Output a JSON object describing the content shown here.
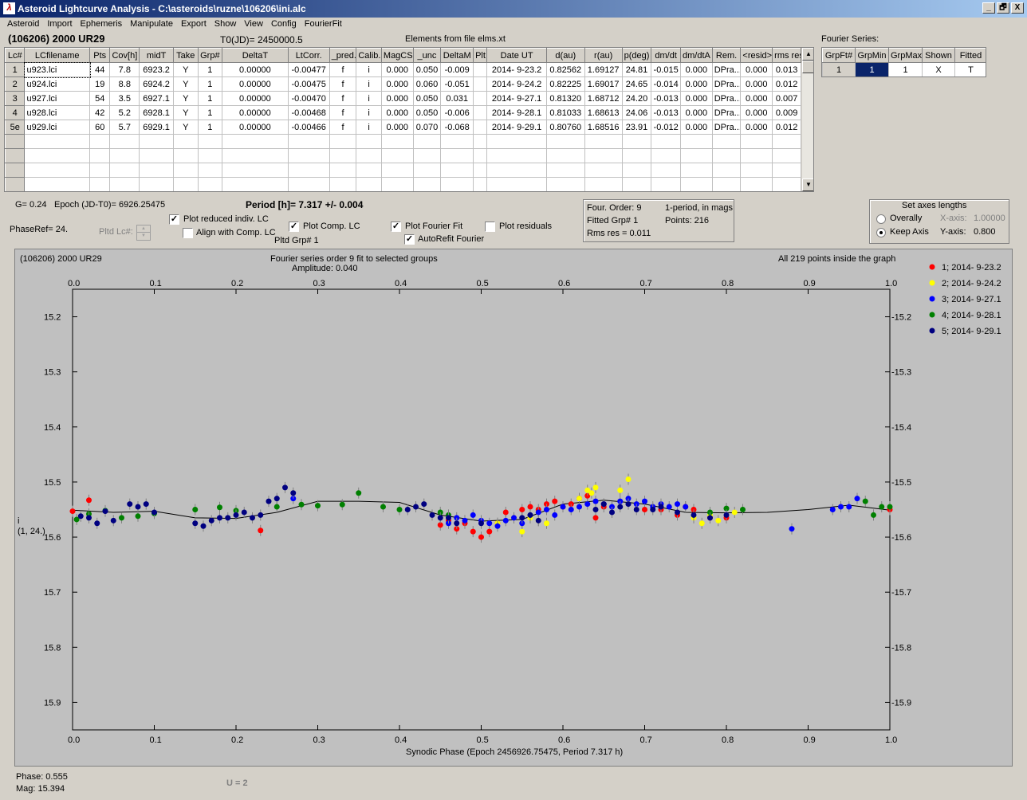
{
  "window": {
    "title": "Asteroid Lightcurve Analysis - C:\\asteroids\\ruzne\\106206\\ini.alc",
    "app_icon": "lightcurve-app-icon",
    "controls": [
      "_",
      "🗗",
      "X"
    ]
  },
  "menu": [
    "Asteroid",
    "Import",
    "Ephemeris",
    "Manipulate",
    "Export",
    "Show",
    "View",
    "Config",
    "FourierFit"
  ],
  "header": {
    "asteroid_name": "(106206) 2000 UR29",
    "t0": "T0(JD)= 2450000.5",
    "elements_note": "Elements from file elms.xt",
    "fourier_series_label": "Fourier Series:"
  },
  "lc_table": {
    "columns": [
      "Lc#",
      "LCfilename",
      "Pts",
      "Cov[h]",
      "midT",
      "Take",
      "Grp#",
      "DeltaT",
      "LtCorr.",
      "_pred.",
      "Calib.",
      "MagCS",
      "_unc",
      "DeltaM",
      "Plt",
      "Date UT",
      "d(au)",
      "r(au)",
      "p(deg)",
      "dm/dt",
      "dm/dtA",
      "Rem.",
      "<resid>",
      "rms res"
    ],
    "rows": [
      [
        "1",
        "u923.lci",
        "44",
        "7.8",
        "6923.2",
        "Y",
        "1",
        "0.00000",
        "-0.00477",
        "f",
        "i",
        "0.000",
        "0.050",
        "-0.009",
        "",
        "2014- 9-23.2",
        "0.82562",
        "1.69127",
        "24.81",
        "-0.015",
        "0.000",
        "DPra...",
        "0.000",
        "0.013"
      ],
      [
        "2",
        "u924.lci",
        "19",
        "8.8",
        "6924.2",
        "Y",
        "1",
        "0.00000",
        "-0.00475",
        "f",
        "i",
        "0.000",
        "0.060",
        "-0.051",
        "",
        "2014- 9-24.2",
        "0.82225",
        "1.69017",
        "24.65",
        "-0.014",
        "0.000",
        "DPra...",
        "0.000",
        "0.012"
      ],
      [
        "3",
        "u927.lci",
        "54",
        "3.5",
        "6927.1",
        "Y",
        "1",
        "0.00000",
        "-0.00470",
        "f",
        "i",
        "0.000",
        "0.050",
        "0.031",
        "",
        "2014- 9-27.1",
        "0.81320",
        "1.68712",
        "24.20",
        "-0.013",
        "0.000",
        "DPra...",
        "0.000",
        "0.007"
      ],
      [
        "4",
        "u928.lci",
        "42",
        "5.2",
        "6928.1",
        "Y",
        "1",
        "0.00000",
        "-0.00468",
        "f",
        "i",
        "0.000",
        "0.050",
        "-0.006",
        "",
        "2014- 9-28.1",
        "0.81033",
        "1.68613",
        "24.06",
        "-0.013",
        "0.000",
        "DPra...",
        "0.000",
        "0.009"
      ],
      [
        "5e",
        "u929.lci",
        "60",
        "5.7",
        "6929.1",
        "Y",
        "1",
        "0.00000",
        "-0.00466",
        "f",
        "i",
        "0.000",
        "0.070",
        "-0.068",
        "",
        "2014- 9-29.1",
        "0.80760",
        "1.68516",
        "23.91",
        "-0.012",
        "0.000",
        "DPra...",
        "0.000",
        "0.012"
      ]
    ],
    "empty_rows": 4
  },
  "fourier_table": {
    "columns": [
      "GrpFt#",
      "GrpMin",
      "GrpMax",
      "Shown",
      "Fitted"
    ],
    "row": [
      "1",
      "1",
      "1",
      "X",
      "T"
    ]
  },
  "info": {
    "g": "G= 0.24",
    "epoch": "Epoch (JD-T0)= 6926.25475",
    "period": "Period [h]= 7.317 +/- 0.004",
    "phaseref": "PhaseRef= 24.",
    "pltd_lc": "Pltd Lc#:",
    "pltd_grp": "Pltd Grp#  1",
    "four_order": "Four. Order:  9",
    "one_period": "1-period, in mags",
    "fitted_grp": "Fitted Grp# 1",
    "points": "Points: 216",
    "rms_res": "Rms res     = 0.011"
  },
  "checkboxes": [
    {
      "label": "Plot reduced indiv. LC",
      "checked": true
    },
    {
      "label": "Align with Comp. LC",
      "checked": false
    },
    {
      "label": "Plot Comp. LC",
      "checked": true
    },
    {
      "label": "Plot Fourier Fit",
      "checked": true
    },
    {
      "label": "AutoRefit Fourier",
      "checked": true
    },
    {
      "label": "Plot residuals",
      "checked": false
    }
  ],
  "axes_box": {
    "title": "Set axes lengths",
    "overally": "Overally",
    "keep_axis": "Keep Axis",
    "x_axis_label": "X-axis:",
    "x_axis_value": "1.00000",
    "y_axis_label": "Y-axis:",
    "y_axis_value": "0.800",
    "selected": "Keep Axis"
  },
  "plot": {
    "name_label": "(106206) 2000 UR29",
    "fit_title": "Fourier series order 9 fit to selected groups",
    "amplitude": "Amplitude: 0.040",
    "points_note": "All 219 points inside the graph",
    "ylabel_mag": "i",
    "ylabel_sub": "(1, 24.)",
    "xlabel": "Synodic Phase (Epoch 2456926.75475, Period 7.317 h)",
    "phase_readout": "Phase:  0.555",
    "mag_readout": "Mag:   15.394",
    "u_label": "U = 2"
  },
  "chart_data": {
    "type": "scatter",
    "xlim": [
      0.0,
      1.0
    ],
    "ylim": [
      15.95,
      15.15
    ],
    "xticks": [
      0.0,
      0.1,
      0.2,
      0.3,
      0.4,
      0.5,
      0.6,
      0.7,
      0.8,
      0.9,
      1.0
    ],
    "yticks": [
      15.2,
      15.3,
      15.4,
      15.5,
      15.6,
      15.7,
      15.8,
      15.9
    ],
    "legend_position": "top-right (outside plot)",
    "grid": false,
    "fit_curve": {
      "color": "#000000",
      "x": [
        0.0,
        0.05,
        0.1,
        0.15,
        0.2,
        0.25,
        0.3,
        0.35,
        0.4,
        0.45,
        0.5,
        0.55,
        0.6,
        0.65,
        0.7,
        0.75,
        0.8,
        0.85,
        0.9,
        0.95,
        1.0
      ],
      "y": [
        15.551,
        15.555,
        15.553,
        15.565,
        15.566,
        15.555,
        15.535,
        15.535,
        15.537,
        15.56,
        15.571,
        15.568,
        15.54,
        15.533,
        15.54,
        15.555,
        15.556,
        15.555,
        15.55,
        15.542,
        15.551
      ]
    },
    "series": [
      {
        "name": "1; 2014- 9-23.2",
        "color": "#ff0000",
        "x": [
          0.0,
          0.02,
          0.23,
          0.45,
          0.46,
          0.47,
          0.48,
          0.49,
          0.5,
          0.51,
          0.52,
          0.53,
          0.55,
          0.56,
          0.57,
          0.58,
          0.59,
          0.6,
          0.61,
          0.62,
          0.63,
          0.64,
          0.65,
          0.7,
          0.72,
          0.74,
          0.75,
          0.76,
          0.78,
          0.8,
          1.0
        ],
        "y": [
          15.553,
          15.533,
          15.588,
          15.578,
          15.57,
          15.585,
          15.575,
          15.59,
          15.6,
          15.59,
          15.575,
          15.555,
          15.55,
          15.545,
          15.55,
          15.54,
          15.535,
          15.545,
          15.54,
          15.53,
          15.525,
          15.565,
          15.545,
          15.55,
          15.55,
          15.56,
          15.545,
          15.55,
          15.565,
          15.565,
          15.55
        ]
      },
      {
        "name": "2; 2014- 9-24.2",
        "color": "#ffff00",
        "x": [
          0.52,
          0.54,
          0.55,
          0.56,
          0.57,
          0.58,
          0.62,
          0.63,
          0.635,
          0.64,
          0.67,
          0.68,
          0.76,
          0.77,
          0.78,
          0.79,
          0.81
        ],
        "y": [
          15.575,
          15.565,
          15.59,
          15.565,
          15.57,
          15.575,
          15.53,
          15.515,
          15.52,
          15.51,
          15.515,
          15.495,
          15.565,
          15.575,
          15.56,
          15.57,
          15.555
        ]
      },
      {
        "name": "3; 2014- 9-27.1",
        "color": "#0000ff",
        "x": [
          0.27,
          0.46,
          0.47,
          0.48,
          0.49,
          0.5,
          0.51,
          0.52,
          0.53,
          0.54,
          0.55,
          0.56,
          0.57,
          0.58,
          0.59,
          0.6,
          0.61,
          0.62,
          0.63,
          0.64,
          0.65,
          0.66,
          0.67,
          0.68,
          0.69,
          0.7,
          0.71,
          0.72,
          0.73,
          0.74,
          0.75,
          0.88,
          0.93,
          0.94,
          0.95,
          0.96
        ],
        "y": [
          15.53,
          15.575,
          15.565,
          15.57,
          15.56,
          15.57,
          15.575,
          15.58,
          15.57,
          15.565,
          15.575,
          15.56,
          15.555,
          15.55,
          15.56,
          15.545,
          15.55,
          15.545,
          15.54,
          15.535,
          15.54,
          15.545,
          15.535,
          15.53,
          15.54,
          15.535,
          15.545,
          15.54,
          15.545,
          15.54,
          15.545,
          15.585,
          15.55,
          15.545,
          15.545,
          15.53
        ]
      },
      {
        "name": "4; 2014- 9-28.1",
        "color": "#008000",
        "x": [
          0.005,
          0.02,
          0.04,
          0.06,
          0.08,
          0.1,
          0.15,
          0.18,
          0.2,
          0.25,
          0.28,
          0.3,
          0.33,
          0.35,
          0.38,
          0.4,
          0.45,
          0.46,
          0.78,
          0.8,
          0.82,
          0.97,
          0.98,
          0.99,
          1.0
        ],
        "y": [
          15.568,
          15.558,
          15.552,
          15.565,
          15.562,
          15.557,
          15.55,
          15.546,
          15.552,
          15.545,
          15.541,
          15.543,
          15.541,
          15.52,
          15.545,
          15.55,
          15.555,
          15.56,
          15.555,
          15.548,
          15.55,
          15.535,
          15.56,
          15.545,
          15.545
        ]
      },
      {
        "name": "5; 2014- 9-29.1",
        "color": "#000080",
        "x": [
          0.01,
          0.02,
          0.03,
          0.04,
          0.05,
          0.07,
          0.08,
          0.09,
          0.1,
          0.15,
          0.16,
          0.17,
          0.18,
          0.19,
          0.2,
          0.21,
          0.22,
          0.23,
          0.24,
          0.25,
          0.26,
          0.27,
          0.41,
          0.42,
          0.43,
          0.44,
          0.45,
          0.46,
          0.47,
          0.5,
          0.55,
          0.56,
          0.57,
          0.64,
          0.65,
          0.66,
          0.67,
          0.68,
          0.69,
          0.71,
          0.72,
          0.74,
          0.76,
          0.78,
          0.8
        ],
        "y": [
          15.562,
          15.565,
          15.575,
          15.553,
          15.57,
          15.54,
          15.545,
          15.54,
          15.555,
          15.575,
          15.58,
          15.57,
          15.565,
          15.565,
          15.56,
          15.555,
          15.565,
          15.56,
          15.535,
          15.53,
          15.51,
          15.52,
          15.55,
          15.545,
          15.54,
          15.56,
          15.565,
          15.565,
          15.575,
          15.575,
          15.565,
          15.56,
          15.57,
          15.55,
          15.54,
          15.555,
          15.545,
          15.54,
          15.55,
          15.55,
          15.545,
          15.555,
          15.56,
          15.565,
          15.56
        ]
      }
    ]
  }
}
